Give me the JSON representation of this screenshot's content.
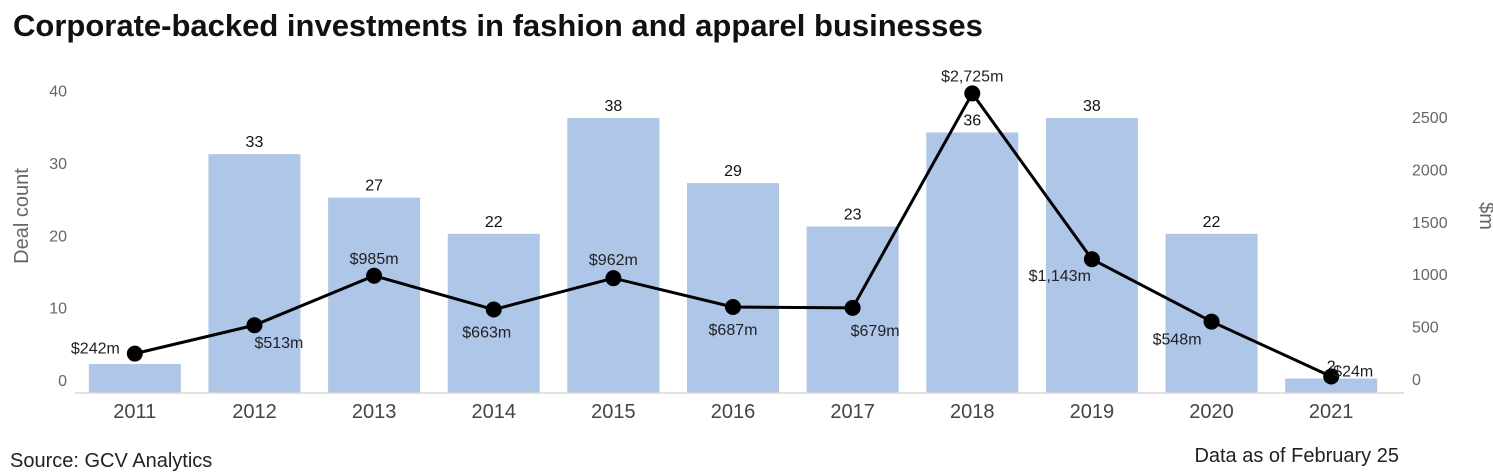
{
  "title": "Corporate-backed investments in fashion and apparel businesses",
  "source": "Source: GCV Analytics",
  "as_of": "Data as of February 25",
  "chart_data": {
    "type": "bar",
    "categories": [
      "2011",
      "2012",
      "2013",
      "2014",
      "2015",
      "2016",
      "2017",
      "2018",
      "2019",
      "2020",
      "2021"
    ],
    "series": [
      {
        "values": [
          4,
          33,
          27,
          22,
          38,
          29,
          23,
          36,
          38,
          22,
          2
        ],
        "chart": "bar",
        "axis": "left",
        "color": "#aec6e8"
      },
      {
        "values": [
          242,
          513,
          985,
          663,
          962,
          687,
          679,
          2725,
          1143,
          548,
          24
        ],
        "chart": "line",
        "axis": "right",
        "color": "#000000",
        "labels": [
          "$242m",
          "$513m",
          "$985m",
          "$663m",
          "$962m",
          "$687m",
          "$679m",
          "$2,725m",
          "$1,143m",
          "$548m",
          "$24m"
        ]
      }
    ],
    "y_left": {
      "label": "Deal count",
      "ticks": [
        0,
        10,
        20,
        30,
        40
      ],
      "lim": [
        0,
        40
      ]
    },
    "y_right": {
      "label": "$m",
      "ticks": [
        0,
        500,
        1000,
        1500,
        2000,
        2500
      ],
      "lim": [
        -120,
        2625
      ]
    },
    "grid": false,
    "legend": "none"
  }
}
